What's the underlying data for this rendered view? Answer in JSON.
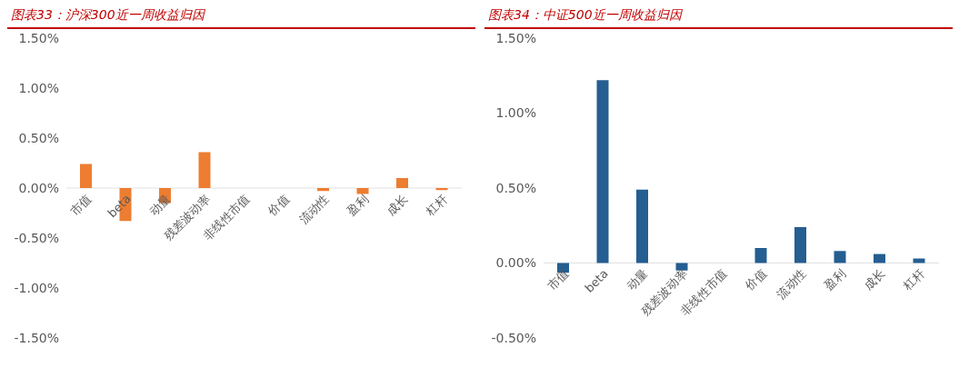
{
  "chart_data": [
    {
      "type": "bar",
      "title": "图表33：沪深300近一周收益归因",
      "categories": [
        "市值",
        "beta",
        "动量",
        "残差波动率",
        "非线性市值",
        "价值",
        "流动性",
        "盈利",
        "成长",
        "杠杆"
      ],
      "values": [
        0.24,
        -0.33,
        -0.15,
        0.36,
        0,
        0,
        -0.03,
        -0.06,
        0.1,
        -0.02
      ],
      "color": "#ed7d31",
      "ylim": [
        -1.5,
        1.5
      ],
      "yticks": [
        {
          "value": -1.5,
          "label": "-1.50%"
        },
        {
          "value": -1,
          "label": "-1.00%"
        },
        {
          "value": -0.5,
          "label": "-0.50%"
        },
        {
          "value": 0,
          "label": "0.00%"
        },
        {
          "value": 0.5,
          "label": "0.50%"
        },
        {
          "value": 1,
          "label": "1.00%"
        },
        {
          "value": 1.5,
          "label": "1.50%"
        }
      ]
    },
    {
      "type": "bar",
      "title": "图表34：中证500近一周收益归因",
      "categories": [
        "市值",
        "beta",
        "动量",
        "残差波动率",
        "非线性市值",
        "价值",
        "流动性",
        "盈利",
        "成长",
        "杠杆"
      ],
      "values": [
        -0.065,
        1.22,
        0.49,
        -0.05,
        0,
        0.1,
        0.24,
        0.08,
        0.06,
        0.03
      ],
      "color": "#255e91",
      "ylim": [
        -0.5,
        1.5
      ],
      "yticks": [
        {
          "value": -0.5,
          "label": "-0.50%"
        },
        {
          "value": 0,
          "label": "0.00%"
        },
        {
          "value": 0.5,
          "label": "0.50%"
        },
        {
          "value": 1,
          "label": "1.00%"
        },
        {
          "value": 1.5,
          "label": "1.50%"
        }
      ]
    }
  ]
}
